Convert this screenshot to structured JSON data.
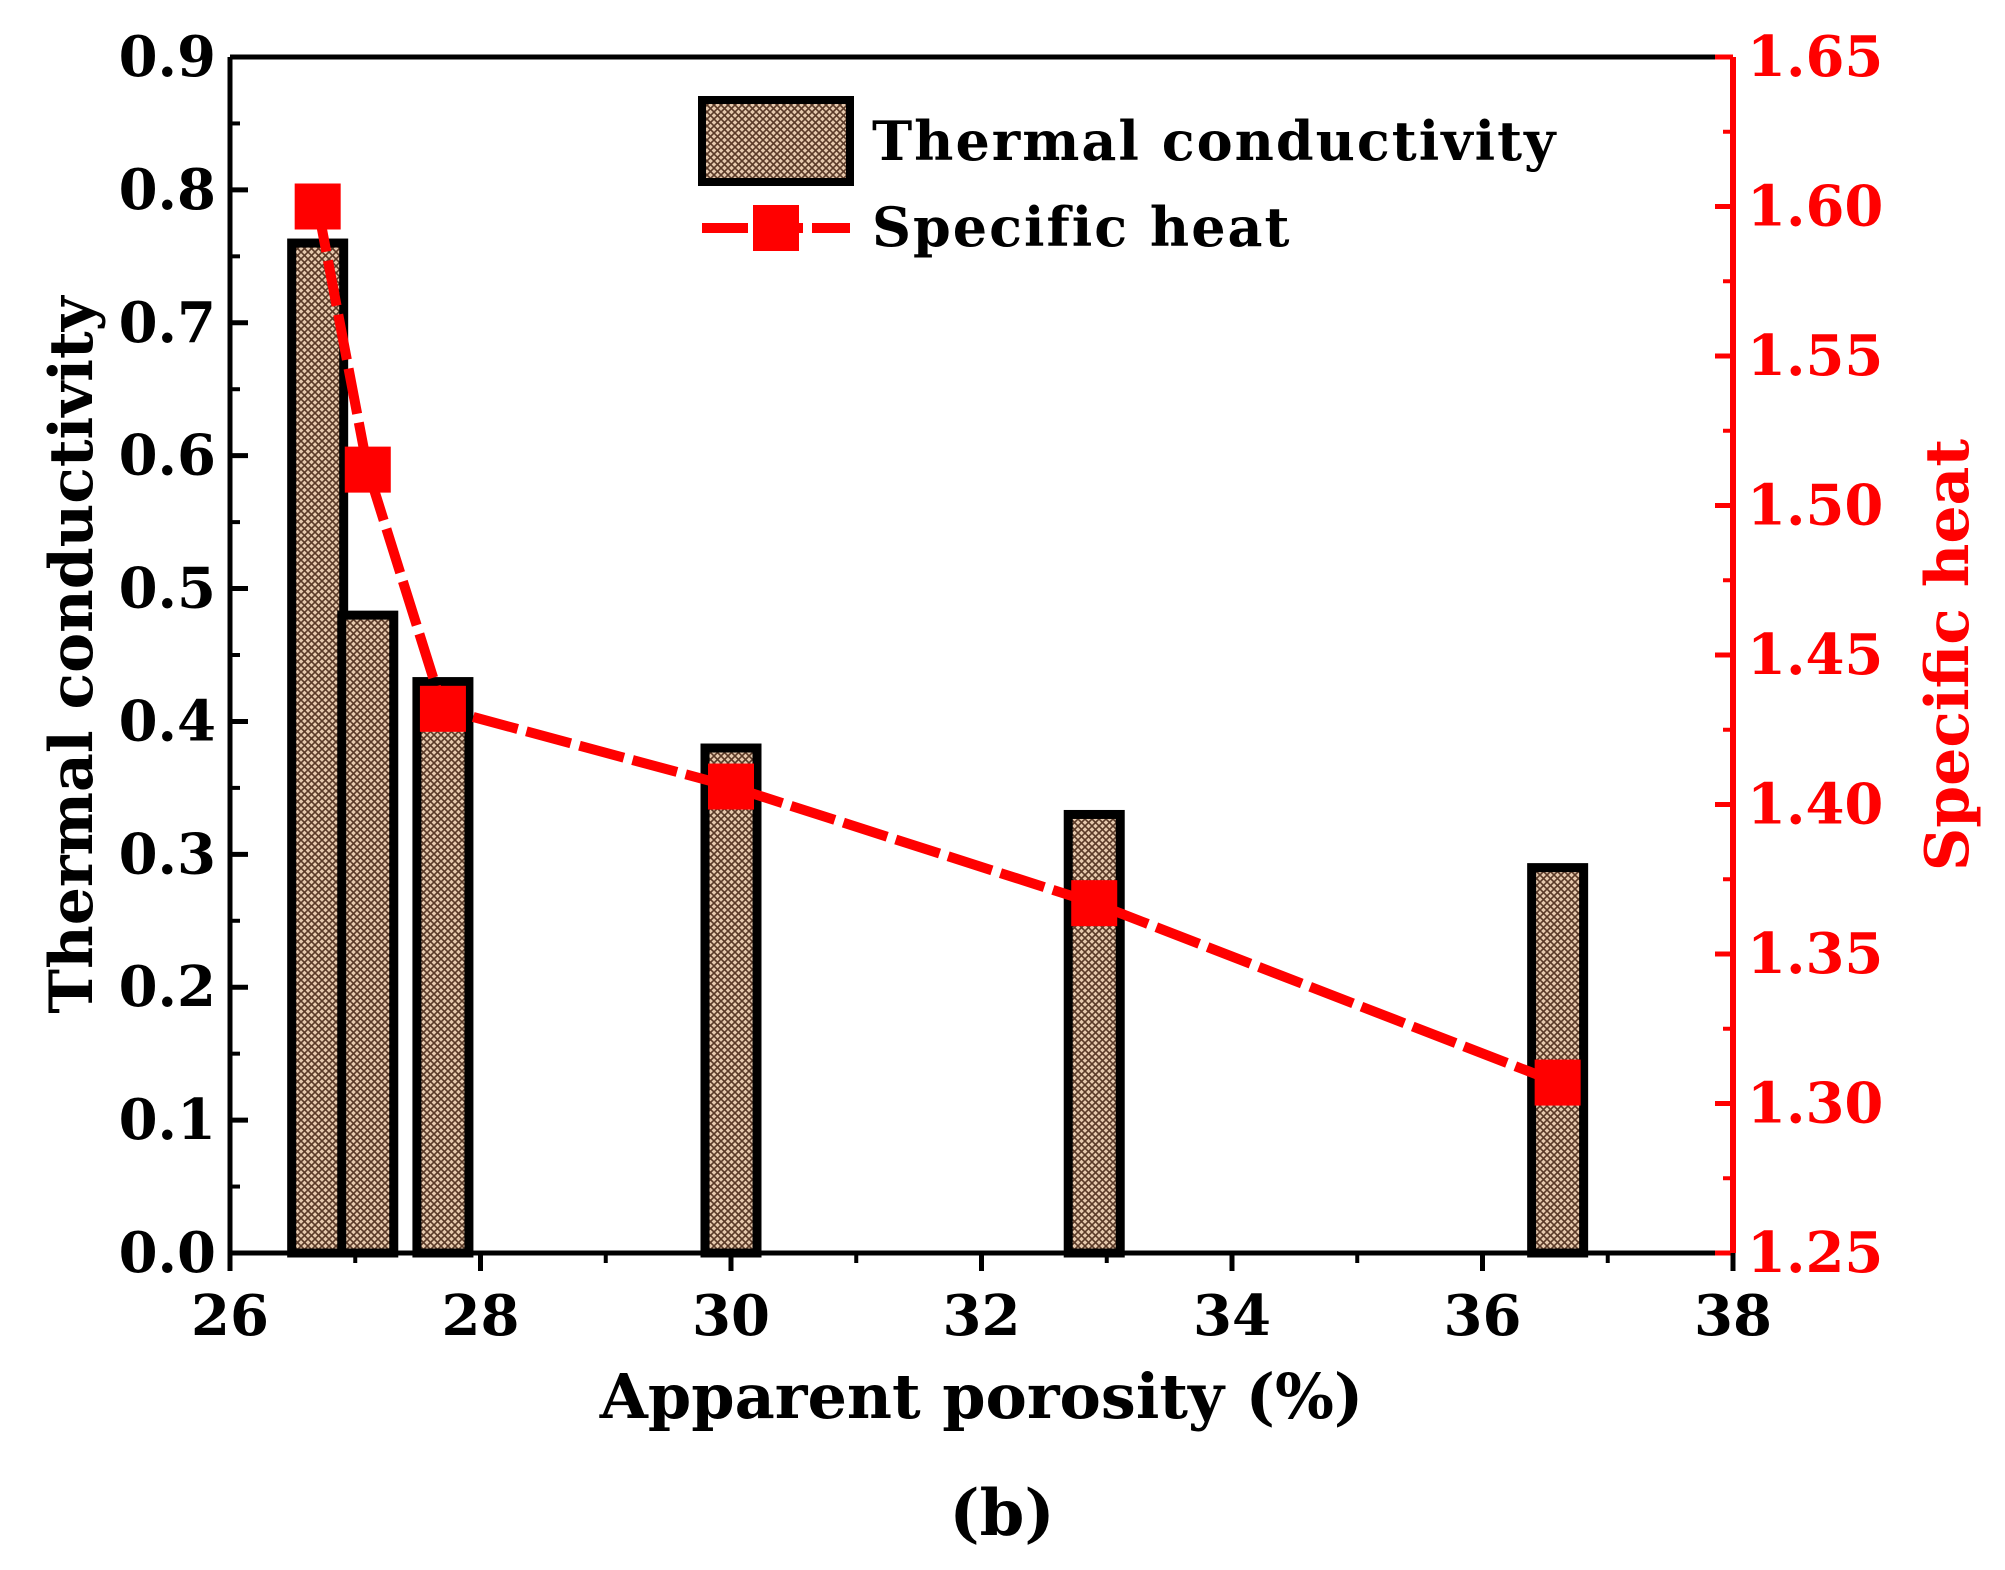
{
  "chart_data": {
    "type": "bar+line",
    "panel_label": "(b)",
    "xlabel": "Apparent porosity (%)",
    "ylabel_left": "Thermal conductivity",
    "ylabel_right": "Specific heat",
    "xlim": [
      26,
      38
    ],
    "ylim_left": [
      0.0,
      0.9
    ],
    "ylim_right": [
      1.25,
      1.65
    ],
    "x_ticks": [
      "26",
      "28",
      "30",
      "32",
      "34",
      "36",
      "38"
    ],
    "y_left_ticks": [
      "0.0",
      "0.1",
      "0.2",
      "0.3",
      "0.4",
      "0.5",
      "0.6",
      "0.7",
      "0.8",
      "0.9"
    ],
    "y_right_ticks": [
      "1.25",
      "1.30",
      "1.35",
      "1.40",
      "1.45",
      "1.50",
      "1.55",
      "1.60",
      "1.65"
    ],
    "colors": {
      "axis_right": "#ff0000",
      "line": "#ff0000",
      "bar_fill": "#e6c9ad",
      "bar_edge": "#000000"
    },
    "series": [
      {
        "name": "Thermal conductivity",
        "kind": "bar",
        "axis": "left",
        "x": [
          26.7,
          27.1,
          27.7,
          30.0,
          32.9,
          36.6
        ],
        "values": [
          0.76,
          0.48,
          0.43,
          0.38,
          0.33,
          0.29
        ]
      },
      {
        "name": "Specific heat",
        "kind": "line",
        "axis": "right",
        "x": [
          26.7,
          27.1,
          27.7,
          30.0,
          32.9,
          36.6
        ],
        "values": [
          1.6,
          1.512,
          1.432,
          1.406,
          1.367,
          1.307
        ]
      }
    ],
    "legend": {
      "position": "top-center",
      "entries": [
        "Thermal conductivity",
        "Specific heat"
      ]
    }
  }
}
